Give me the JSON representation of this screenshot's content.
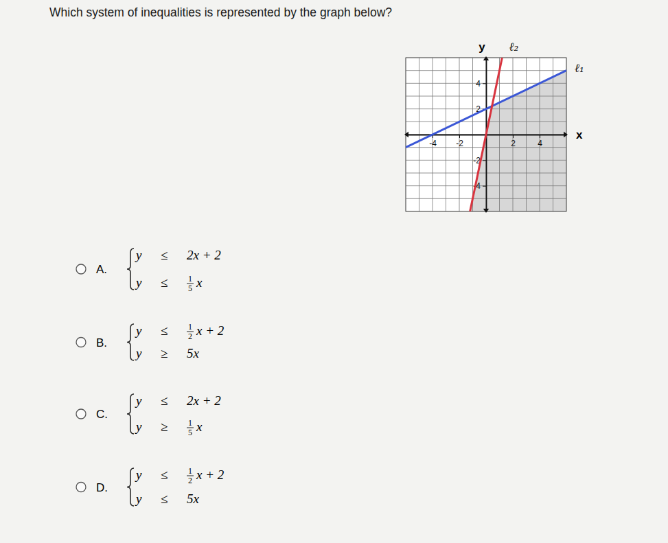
{
  "question": "Which system of inequalities is represented by the graph below?",
  "chart_data": {
    "type": "line",
    "x_label": "x",
    "y_label": "y",
    "xlim": [
      -6,
      6
    ],
    "ylim": [
      -6,
      6
    ],
    "xticks": [
      -4,
      -2,
      2,
      4
    ],
    "yticks": [
      -4,
      -2,
      2,
      4
    ],
    "grid": true,
    "series": [
      {
        "name": "ℓ₁",
        "color": "#3b57d6",
        "x": [
          -6,
          6
        ],
        "values": [
          -1,
          5
        ]
      },
      {
        "name": "ℓ₂",
        "color": "#d8343f",
        "x": [
          -1.2,
          1.2
        ],
        "values": [
          -6,
          6
        ]
      }
    ]
  },
  "options": [
    {
      "letter": "A.",
      "inequalities": [
        {
          "lhs": "y",
          "op": "≤",
          "rhs": "2x + 2"
        },
        {
          "lhs": "y",
          "op": "≤",
          "frac": [
            "1",
            "5"
          ],
          "rhs": "x"
        }
      ]
    },
    {
      "letter": "B.",
      "inequalities": [
        {
          "lhs": "y",
          "op": "≤",
          "frac": [
            "1",
            "2"
          ],
          "rhs": "x + 2"
        },
        {
          "lhs": "y",
          "op": "≥",
          "rhs": "5x"
        }
      ]
    },
    {
      "letter": "C.",
      "inequalities": [
        {
          "lhs": "y",
          "op": "≤",
          "rhs": "2x + 2"
        },
        {
          "lhs": "y",
          "op": "≥",
          "frac": [
            "1",
            "5"
          ],
          "rhs": "x"
        }
      ]
    },
    {
      "letter": "D.",
      "inequalities": [
        {
          "lhs": "y",
          "op": "≤",
          "frac": [
            "1",
            "2"
          ],
          "rhs": "x + 2"
        },
        {
          "lhs": "y",
          "op": "≤",
          "rhs": "5x"
        }
      ]
    }
  ]
}
